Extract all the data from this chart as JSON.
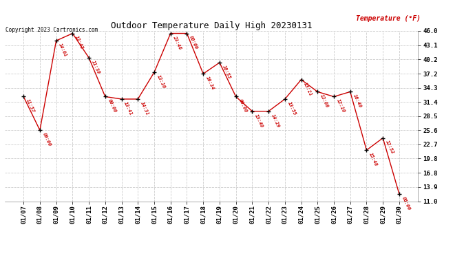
{
  "title": "Outdoor Temperature Daily High 20230131",
  "ylabel": "Temperature (°F)",
  "copyright": "Copyright 2023 Cartronics.com",
  "dates": [
    "01/07",
    "01/08",
    "01/09",
    "01/10",
    "01/11",
    "01/12",
    "01/13",
    "01/14",
    "01/15",
    "01/16",
    "01/17",
    "01/18",
    "01/19",
    "01/20",
    "01/21",
    "01/22",
    "01/23",
    "01/24",
    "01/25",
    "01/26",
    "01/27",
    "01/28",
    "01/29",
    "01/30"
  ],
  "values": [
    32.5,
    25.6,
    44.0,
    45.5,
    40.5,
    32.5,
    32.0,
    32.0,
    37.5,
    45.5,
    45.5,
    37.2,
    39.5,
    32.5,
    29.5,
    29.5,
    32.0,
    36.0,
    33.5,
    32.5,
    33.5,
    21.5,
    24.0,
    12.5
  ],
  "times": [
    "11:57",
    "00:00",
    "14:01",
    "13:42",
    "11:39",
    "00:00",
    "13:41",
    "14:31",
    "13:10",
    "23:46",
    "00:00",
    "10:34",
    "10:55",
    "00:00",
    "13:40",
    "14:29",
    "13:55",
    "13:21",
    "13:08",
    "12:10",
    "16:40",
    "15:48",
    "12:53",
    "06:00"
  ],
  "ylim_min": 11.0,
  "ylim_max": 46.0,
  "yticks": [
    11.0,
    13.9,
    16.8,
    19.8,
    22.7,
    25.6,
    28.5,
    31.4,
    34.3,
    37.2,
    40.2,
    43.1,
    46.0
  ],
  "line_color": "#cc0000",
  "marker_color": "#000000",
  "bg_color": "#ffffff",
  "grid_color": "#cccccc",
  "title_color": "#000000",
  "label_color": "#cc0000",
  "copyright_color": "#000000",
  "figwidth": 6.9,
  "figheight": 3.75,
  "dpi": 100
}
